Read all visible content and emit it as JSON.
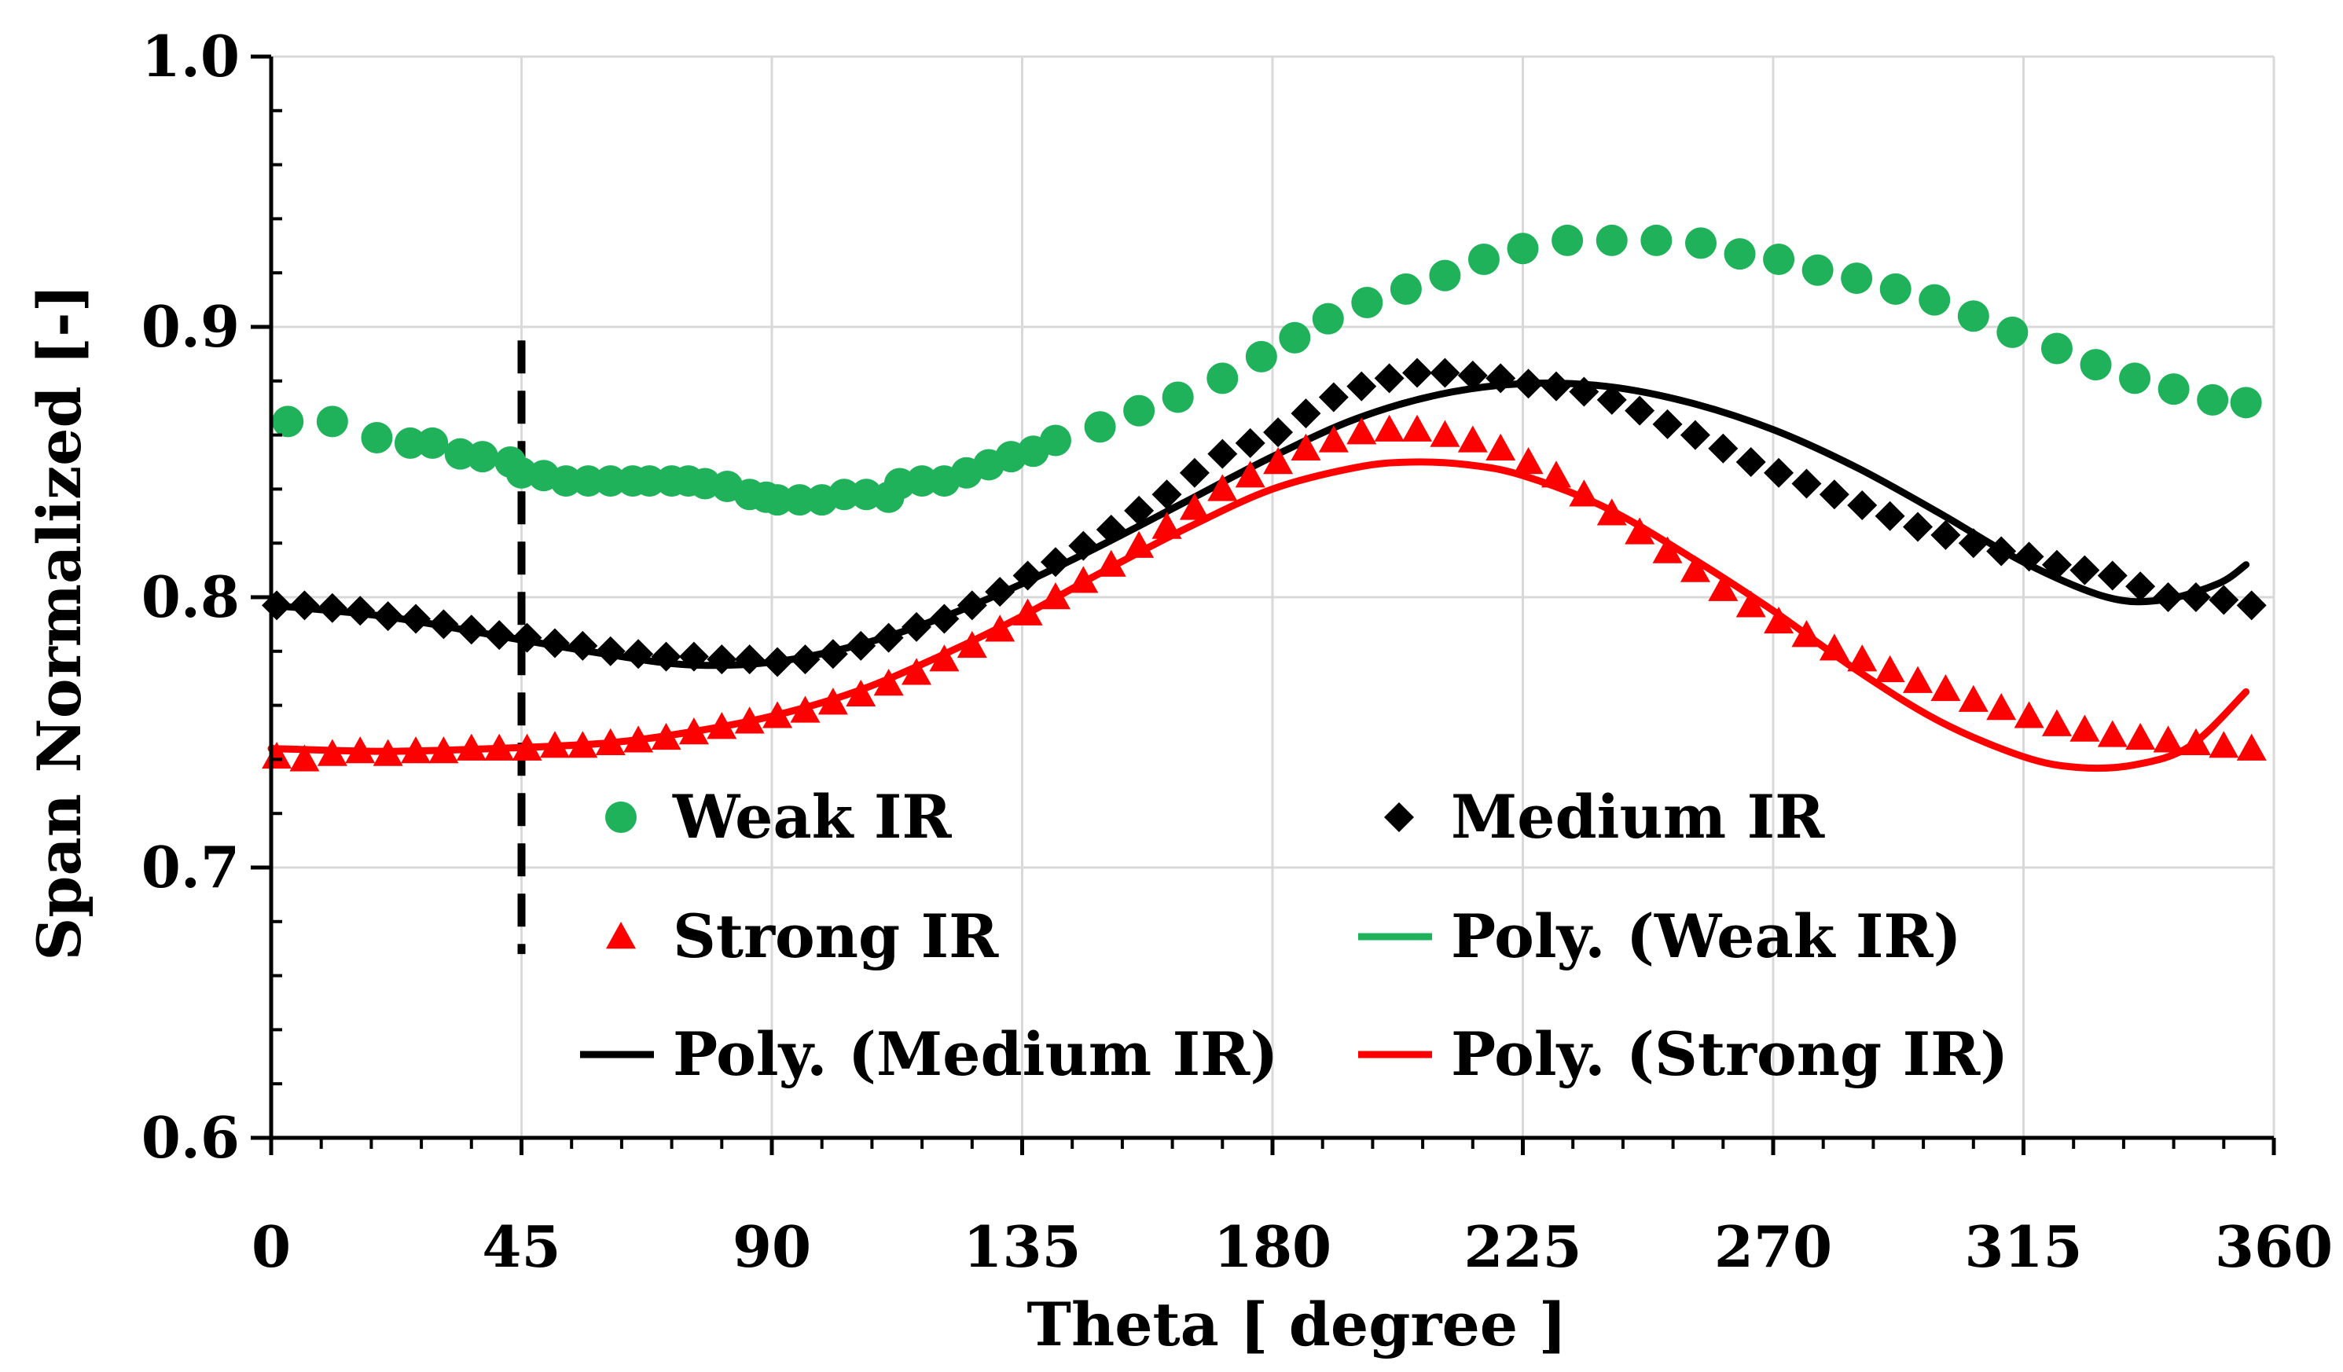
{
  "chart_data": {
    "type": "scatter",
    "title": "",
    "xlabel": "Theta [ degree ]",
    "ylabel": "Span  Normalized [-]",
    "xlim": [
      0,
      360
    ],
    "ylim": [
      0.6,
      1.0
    ],
    "xticks": [
      0,
      45,
      90,
      135,
      180,
      225,
      270,
      315,
      360
    ],
    "xtick_labels": [
      "0",
      "45",
      "90",
      "135",
      "180",
      "225",
      "270",
      "315",
      "360"
    ],
    "yticks": [
      0.6,
      0.7,
      0.8,
      0.9,
      1.0
    ],
    "ytick_labels": [
      "0.6",
      "0.7",
      "0.8",
      "0.9",
      "1.0"
    ],
    "grid": true,
    "annotations": [
      {
        "type": "vertical-dashed-line",
        "x": 45,
        "y_range": [
          0.668,
          0.895
        ],
        "color": "#000000"
      }
    ],
    "series": [
      {
        "name": "Weak IR",
        "kind": "scatter",
        "marker": "circle",
        "color": "#1fb25a",
        "x": [
          3,
          11,
          19,
          25,
          29,
          34,
          38,
          43,
          45,
          49,
          53,
          57,
          61,
          65,
          68,
          72,
          75,
          78,
          82,
          86,
          89,
          91,
          95,
          99,
          103,
          107,
          111,
          113,
          117,
          121,
          125,
          129,
          133,
          137,
          141,
          149,
          156,
          163,
          171,
          178,
          184,
          190,
          197,
          204,
          211,
          218,
          225,
          233,
          241,
          249,
          257,
          264,
          271,
          278,
          285,
          292,
          299,
          306,
          313,
          321,
          328,
          335,
          342,
          349,
          355
        ],
        "y": [
          0.865,
          0.865,
          0.859,
          0.857,
          0.857,
          0.853,
          0.852,
          0.85,
          0.846,
          0.845,
          0.843,
          0.843,
          0.843,
          0.843,
          0.843,
          0.843,
          0.843,
          0.842,
          0.841,
          0.838,
          0.837,
          0.836,
          0.836,
          0.836,
          0.838,
          0.838,
          0.837,
          0.842,
          0.843,
          0.843,
          0.846,
          0.849,
          0.852,
          0.854,
          0.858,
          0.863,
          0.869,
          0.874,
          0.881,
          0.889,
          0.896,
          0.903,
          0.909,
          0.914,
          0.919,
          0.925,
          0.929,
          0.932,
          0.932,
          0.932,
          0.931,
          0.927,
          0.925,
          0.921,
          0.918,
          0.914,
          0.91,
          0.904,
          0.898,
          0.892,
          0.886,
          0.881,
          0.877,
          0.873,
          0.872
        ]
      },
      {
        "name": "Medium IR",
        "kind": "scatter",
        "marker": "diamond",
        "color": "#000000",
        "x": [
          1,
          6,
          11,
          16,
          21,
          26,
          31,
          36,
          41,
          46,
          51,
          56,
          61,
          66,
          71,
          76,
          81,
          86,
          91,
          96,
          101,
          106,
          111,
          116,
          121,
          126,
          131,
          136,
          141,
          146,
          151,
          156,
          161,
          166,
          171,
          176,
          181,
          186,
          191,
          196,
          201,
          206,
          211,
          216,
          221,
          226,
          231,
          236,
          241,
          246,
          251,
          256,
          261,
          266,
          271,
          276,
          281,
          286,
          291,
          296,
          301,
          306,
          311,
          316,
          321,
          326,
          331,
          336,
          341,
          346,
          351,
          356
        ],
        "y": [
          0.797,
          0.797,
          0.796,
          0.795,
          0.793,
          0.792,
          0.79,
          0.788,
          0.786,
          0.785,
          0.783,
          0.782,
          0.78,
          0.779,
          0.778,
          0.778,
          0.777,
          0.777,
          0.776,
          0.777,
          0.779,
          0.782,
          0.785,
          0.789,
          0.792,
          0.797,
          0.802,
          0.808,
          0.813,
          0.819,
          0.825,
          0.832,
          0.838,
          0.846,
          0.853,
          0.857,
          0.861,
          0.868,
          0.874,
          0.878,
          0.881,
          0.883,
          0.883,
          0.882,
          0.881,
          0.879,
          0.878,
          0.876,
          0.873,
          0.869,
          0.864,
          0.86,
          0.855,
          0.85,
          0.846,
          0.842,
          0.838,
          0.834,
          0.83,
          0.826,
          0.823,
          0.82,
          0.817,
          0.815,
          0.812,
          0.81,
          0.808,
          0.804,
          0.8,
          0.8,
          0.799,
          0.797
        ]
      },
      {
        "name": "Strong IR",
        "kind": "scatter",
        "marker": "triangle",
        "color": "#ff0000",
        "x": [
          1,
          6,
          11,
          16,
          21,
          26,
          31,
          36,
          41,
          46,
          51,
          56,
          61,
          66,
          71,
          76,
          81,
          86,
          91,
          96,
          101,
          106,
          111,
          116,
          121,
          126,
          131,
          136,
          141,
          146,
          151,
          156,
          161,
          166,
          171,
          176,
          181,
          186,
          191,
          196,
          201,
          206,
          211,
          216,
          221,
          226,
          231,
          236,
          241,
          246,
          251,
          256,
          261,
          266,
          271,
          276,
          281,
          286,
          291,
          296,
          301,
          306,
          311,
          316,
          321,
          326,
          331,
          336,
          341,
          346,
          351,
          356
        ],
        "y": [
          0.741,
          0.74,
          0.742,
          0.743,
          0.742,
          0.743,
          0.743,
          0.744,
          0.744,
          0.744,
          0.745,
          0.745,
          0.746,
          0.747,
          0.748,
          0.75,
          0.752,
          0.754,
          0.756,
          0.758,
          0.761,
          0.764,
          0.768,
          0.772,
          0.777,
          0.782,
          0.788,
          0.794,
          0.8,
          0.806,
          0.812,
          0.819,
          0.826,
          0.833,
          0.84,
          0.845,
          0.85,
          0.855,
          0.858,
          0.861,
          0.862,
          0.862,
          0.86,
          0.858,
          0.855,
          0.85,
          0.845,
          0.838,
          0.831,
          0.824,
          0.817,
          0.81,
          0.803,
          0.797,
          0.791,
          0.786,
          0.781,
          0.777,
          0.773,
          0.769,
          0.766,
          0.762,
          0.759,
          0.756,
          0.753,
          0.751,
          0.749,
          0.748,
          0.747,
          0.746,
          0.745,
          0.744
        ]
      },
      {
        "name": "Poly. (Weak IR)",
        "kind": "line",
        "color": "#1fb25a",
        "x": [],
        "y": []
      },
      {
        "name": "Poly. (Medium IR)",
        "kind": "line",
        "color": "#000000",
        "x": [
          0,
          20,
          40,
          60,
          75,
          90,
          105,
          120,
          135,
          150,
          165,
          180,
          195,
          210,
          225,
          240,
          255,
          270,
          285,
          300,
          315,
          330,
          340,
          350,
          355
        ],
        "y": [
          0.797,
          0.793,
          0.786,
          0.779,
          0.775,
          0.776,
          0.782,
          0.792,
          0.805,
          0.82,
          0.836,
          0.852,
          0.866,
          0.875,
          0.879,
          0.878,
          0.872,
          0.862,
          0.848,
          0.831,
          0.813,
          0.8,
          0.799,
          0.805,
          0.812
        ]
      },
      {
        "name": "Poly. (Strong IR)",
        "kind": "line",
        "color": "#ff0000",
        "x": [
          0,
          20,
          40,
          60,
          75,
          90,
          105,
          120,
          135,
          150,
          165,
          180,
          195,
          205,
          215,
          225,
          240,
          255,
          270,
          285,
          300,
          315,
          325,
          335,
          345,
          355
        ],
        "y": [
          0.744,
          0.743,
          0.744,
          0.746,
          0.75,
          0.756,
          0.765,
          0.778,
          0.793,
          0.81,
          0.826,
          0.84,
          0.848,
          0.85,
          0.849,
          0.845,
          0.833,
          0.815,
          0.795,
          0.773,
          0.754,
          0.741,
          0.737,
          0.738,
          0.745,
          0.765
        ]
      }
    ],
    "legend": {
      "placement": "center-lower",
      "entries": [
        "Weak IR",
        "Medium IR",
        "Strong IR",
        "Poly. (Weak IR)",
        "Poly. (Medium IR)",
        "Poly. (Strong IR)"
      ]
    }
  }
}
